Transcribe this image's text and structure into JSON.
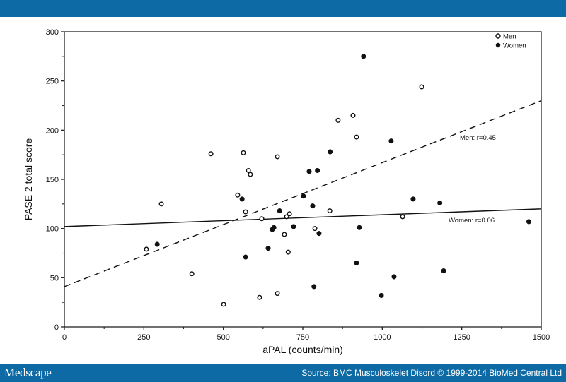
{
  "header": {
    "bar_color": "#0e6aa4"
  },
  "footer": {
    "brand": "Medscape",
    "source": "Source: BMC Musculoskelet Disord © 1999-2014 BioMed Central Ltd"
  },
  "chart_data": {
    "type": "scatter",
    "title": "",
    "xlabel": "aPAL (counts/min)",
    "ylabel": "PASE 2 total score",
    "xlim": [
      0,
      1500
    ],
    "ylim": [
      0,
      300
    ],
    "x_ticks": [
      0,
      250,
      500,
      750,
      1000,
      1250,
      1500
    ],
    "y_ticks": [
      0,
      50,
      100,
      150,
      200,
      250,
      300
    ],
    "grid": false,
    "legend_position": "top-right",
    "series": [
      {
        "name": "Men",
        "marker": "open-circle",
        "points": [
          [
            258,
            79
          ],
          [
            305,
            125
          ],
          [
            401,
            54
          ],
          [
            461,
            176
          ],
          [
            501,
            23
          ],
          [
            545,
            134
          ],
          [
            563,
            177
          ],
          [
            570,
            117
          ],
          [
            579,
            159
          ],
          [
            585,
            155
          ],
          [
            614,
            30
          ],
          [
            621,
            110
          ],
          [
            670,
            173
          ],
          [
            670,
            34
          ],
          [
            692,
            94
          ],
          [
            699,
            112
          ],
          [
            704,
            76
          ],
          [
            708,
            115
          ],
          [
            788,
            100
          ],
          [
            835,
            118
          ],
          [
            861,
            210
          ],
          [
            908,
            215
          ],
          [
            919,
            193
          ],
          [
            1064,
            112
          ],
          [
            1124,
            244
          ]
        ],
        "fit_line": {
          "style": "dashed",
          "x": [
            0,
            1500
          ],
          "y": [
            41,
            230
          ],
          "label": "Men: r=0.45"
        }
      },
      {
        "name": "Women",
        "marker": "filled-circle",
        "points": [
          [
            292,
            84
          ],
          [
            559,
            130
          ],
          [
            570,
            71
          ],
          [
            641,
            80
          ],
          [
            654,
            99
          ],
          [
            659,
            101
          ],
          [
            677,
            118
          ],
          [
            721,
            102
          ],
          [
            752,
            133
          ],
          [
            770,
            158
          ],
          [
            781,
            123
          ],
          [
            785,
            41
          ],
          [
            796,
            159
          ],
          [
            801,
            95
          ],
          [
            836,
            178
          ],
          [
            919,
            65
          ],
          [
            928,
            101
          ],
          [
            941,
            275
          ],
          [
            997,
            32
          ],
          [
            1028,
            189
          ],
          [
            1037,
            51
          ],
          [
            1097,
            130
          ],
          [
            1181,
            126
          ],
          [
            1193,
            57
          ],
          [
            1461,
            107
          ]
        ],
        "fit_line": {
          "style": "solid",
          "x": [
            0,
            1500
          ],
          "y": [
            102,
            120
          ],
          "label": "Women: r=0.06"
        }
      }
    ]
  }
}
